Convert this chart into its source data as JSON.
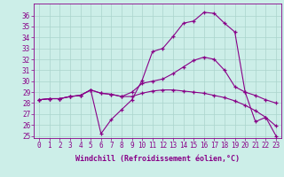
{
  "xlabel": "Windchill (Refroidissement éolien,°C)",
  "bg_color": "#cceee8",
  "line_color": "#880088",
  "grid_color": "#aad4cc",
  "hours": [
    0,
    1,
    2,
    3,
    4,
    5,
    6,
    7,
    8,
    9,
    10,
    11,
    12,
    13,
    14,
    15,
    16,
    17,
    18,
    19,
    20,
    21,
    22,
    23
  ],
  "series1": [
    28.3,
    28.4,
    28.4,
    28.6,
    28.7,
    29.2,
    25.2,
    26.5,
    27.4,
    28.3,
    30.1,
    32.7,
    33.0,
    34.1,
    35.3,
    35.5,
    36.3,
    36.2,
    35.3,
    34.5,
    29.0,
    26.3,
    26.7,
    25.0
  ],
  "series2": [
    28.3,
    28.4,
    28.4,
    28.6,
    28.7,
    29.2,
    28.9,
    28.8,
    28.6,
    29.0,
    29.8,
    30.0,
    30.2,
    30.7,
    31.3,
    31.9,
    32.2,
    32.0,
    31.0,
    29.5,
    29.0,
    28.7,
    28.3,
    28.0
  ],
  "series3": [
    28.3,
    28.4,
    28.4,
    28.6,
    28.7,
    29.2,
    28.9,
    28.8,
    28.6,
    28.6,
    28.9,
    29.1,
    29.2,
    29.2,
    29.1,
    29.0,
    28.9,
    28.7,
    28.5,
    28.2,
    27.8,
    27.3,
    26.7,
    25.9
  ],
  "ylim_min": 25,
  "ylim_max": 37,
  "yticks": [
    25,
    26,
    27,
    28,
    29,
    30,
    31,
    32,
    33,
    34,
    35,
    36
  ],
  "tick_fontsize": 5.5,
  "label_fontsize": 6.0
}
